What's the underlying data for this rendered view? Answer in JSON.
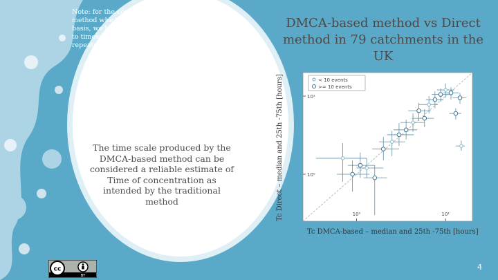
{
  "slide": {
    "note": "Note: for the comparison with the Direct method which can be applied only on an event basis, we have applied the DMCA-based method to timeseries made by copies of the same event repeated multiple times.",
    "title": "DMCA-based method vs Direct method in 79 catchments in the UK",
    "circle_text": "The time scale produced by the DMCA-based method can be considered a reliable estimate of Time of concentration as intended by the traditional method",
    "page_number": "4"
  },
  "chart_data": {
    "type": "scatter",
    "xlabel": "Tc DMCA-based – median and 25th -75th [hours]",
    "ylabel": "Tc Direct – median and 25th -75th [hours]",
    "x_ticks": [
      "10⁰",
      "10¹"
    ],
    "y_ticks": [
      "10¹",
      "10⁰"
    ],
    "legend": [
      "< 10 events",
      ">= 10 events"
    ],
    "scale": "log-log",
    "xlim": [
      0.25,
      20
    ],
    "ylim": [
      0.25,
      20
    ],
    "reference_line": "1:1",
    "points": [
      {
        "x": 0.7,
        "y": 1.6,
        "xlo": 0.35,
        "xhi": 1.3,
        "ylo": 0.8,
        "yhi": 2.5
      },
      {
        "x": 0.9,
        "y": 1.0,
        "xlo": 0.6,
        "xhi": 1.4,
        "ylo": 0.6,
        "yhi": 1.5
      },
      {
        "x": 1.1,
        "y": 1.3,
        "xlo": 0.8,
        "xhi": 1.6,
        "ylo": 0.9,
        "yhi": 1.9
      },
      {
        "x": 1.3,
        "y": 1.2,
        "xlo": 1.0,
        "xhi": 2.0,
        "ylo": 0.9,
        "yhi": 1.6
      },
      {
        "x": 1.6,
        "y": 0.9,
        "xlo": 1.2,
        "xhi": 2.2,
        "ylo": 0.3,
        "yhi": 1.3
      },
      {
        "x": 2.0,
        "y": 2.1,
        "xlo": 1.5,
        "xhi": 3.0,
        "ylo": 1.5,
        "yhi": 3.0
      },
      {
        "x": 2.5,
        "y": 2.6,
        "xlo": 1.8,
        "xhi": 3.5,
        "ylo": 1.7,
        "yhi": 3.6
      },
      {
        "x": 3.0,
        "y": 3.2,
        "xlo": 2.2,
        "xhi": 4.4,
        "ylo": 2.3,
        "yhi": 4.5
      },
      {
        "x": 3.6,
        "y": 3.7,
        "xlo": 2.6,
        "xhi": 4.8,
        "ylo": 2.8,
        "yhi": 5.0
      },
      {
        "x": 4.3,
        "y": 4.6,
        "xlo": 3.1,
        "xhi": 5.8,
        "ylo": 3.5,
        "yhi": 6.0
      },
      {
        "x": 5.0,
        "y": 6.5,
        "xlo": 3.8,
        "xhi": 6.8,
        "ylo": 4.8,
        "yhi": 8.2
      },
      {
        "x": 5.8,
        "y": 5.2,
        "xlo": 4.2,
        "xhi": 7.4,
        "ylo": 4.0,
        "yhi": 6.8
      },
      {
        "x": 6.5,
        "y": 7.8,
        "xlo": 5.0,
        "xhi": 8.2,
        "ylo": 6.0,
        "yhi": 10.0
      },
      {
        "x": 7.6,
        "y": 9.0,
        "xlo": 6.0,
        "xhi": 9.4,
        "ylo": 7.0,
        "yhi": 11.5
      },
      {
        "x": 8.8,
        "y": 10.5,
        "xlo": 7.0,
        "xhi": 11.0,
        "ylo": 8.5,
        "yhi": 12.5
      },
      {
        "x": 10.0,
        "y": 12.0,
        "xlo": 8.0,
        "xhi": 12.5,
        "ylo": 9.5,
        "yhi": 14.5
      },
      {
        "x": 11.5,
        "y": 11.0,
        "xlo": 9.5,
        "xhi": 14.0,
        "ylo": 9.0,
        "yhi": 13.0
      },
      {
        "x": 13.0,
        "y": 6.0,
        "xlo": 11.0,
        "xhi": 15.0,
        "ylo": 5.0,
        "yhi": 7.0
      },
      {
        "x": 15.0,
        "y": 2.3,
        "xlo": 13.0,
        "xhi": 16.5,
        "ylo": 2.0,
        "yhi": 2.7
      },
      {
        "x": 14.5,
        "y": 9.5,
        "xlo": 12.0,
        "xhi": 17.0,
        "ylo": 8.0,
        "yhi": 11.0
      }
    ]
  }
}
